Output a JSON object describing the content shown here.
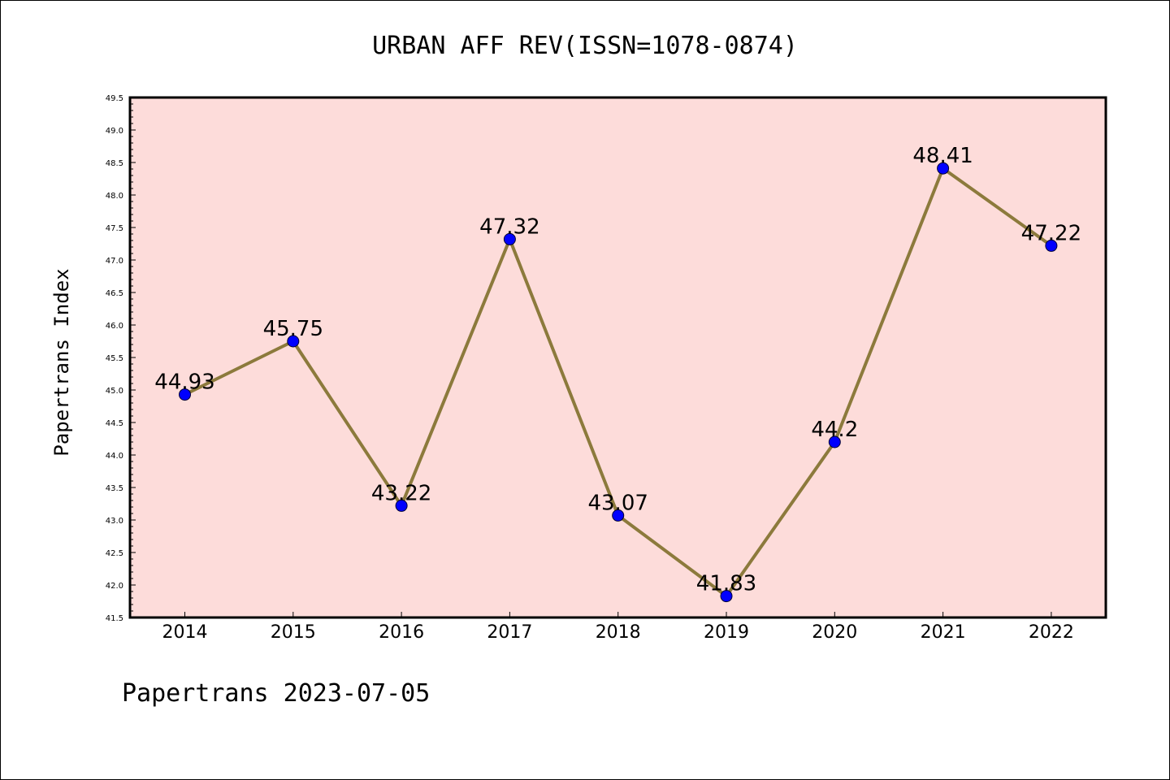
{
  "chart_data": {
    "type": "line",
    "title": "URBAN AFF REV(ISSN=1078-0874)",
    "xlabel": "",
    "ylabel": "Papertrans Index",
    "categories": [
      "2014",
      "2015",
      "2016",
      "2017",
      "2018",
      "2019",
      "2020",
      "2021",
      "2022"
    ],
    "series": [
      {
        "values": [
          44.93,
          45.75,
          43.22,
          47.32,
          43.07,
          41.83,
          44.2,
          48.41,
          47.22
        ]
      }
    ],
    "data_labels": [
      "44.93",
      "45.75",
      "43.22",
      "47.32",
      "43.07",
      "41.83",
      "44.2",
      "48.41",
      "47.22"
    ],
    "ylim": [
      41.5,
      49.5
    ],
    "ytick_step": 0.5,
    "grid": false,
    "plot_background": "#fddcda",
    "line_color": "#8c7a3c",
    "marker_color": "#0000ff",
    "footer": "Papertrans 2023-07-05"
  }
}
